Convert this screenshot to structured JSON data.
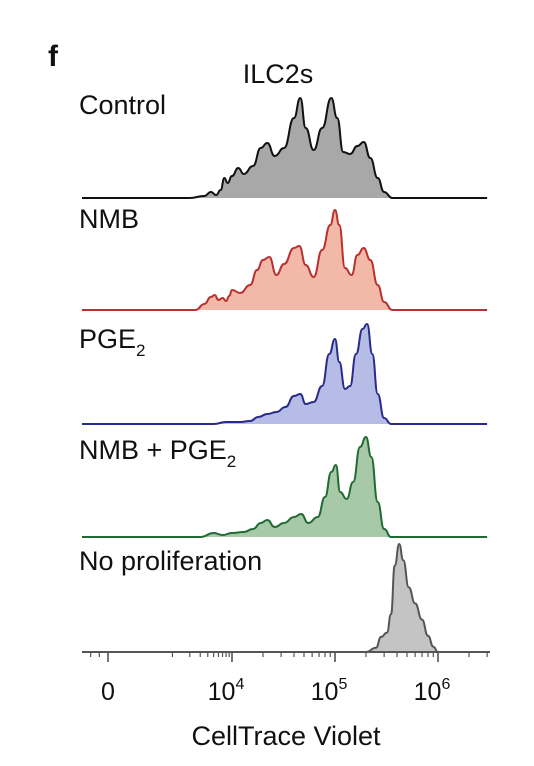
{
  "panel_letter": "f",
  "chart_data": {
    "type": "area",
    "title": "ILC2s",
    "xlabel": "CellTrace Violet",
    "ylabel": "",
    "xscale": "biexponential",
    "xlim": [
      -3000,
      3000000
    ],
    "x_ticks": [
      {
        "value": 0,
        "base": "0",
        "sup": ""
      },
      {
        "value": 10000,
        "base": "10",
        "sup": "4"
      },
      {
        "value": 100000,
        "base": "10",
        "sup": "5"
      },
      {
        "value": 1000000,
        "base": "10",
        "sup": "6"
      }
    ],
    "series": [
      {
        "name": "Control",
        "name_sub": "",
        "stroke": "#111111",
        "fill": "#a8a8a8",
        "points": [
          [
            -3000,
            0
          ],
          [
            2000,
            0.0
          ],
          [
            3500,
            0.02
          ],
          [
            4500,
            0.06
          ],
          [
            5500,
            0.03
          ],
          [
            6500,
            0.08
          ],
          [
            7500,
            0.2
          ],
          [
            8500,
            0.15
          ],
          [
            10000,
            0.22
          ],
          [
            11500,
            0.3
          ],
          [
            13000,
            0.24
          ],
          [
            16000,
            0.32
          ],
          [
            19000,
            0.5
          ],
          [
            22000,
            0.55
          ],
          [
            26000,
            0.42
          ],
          [
            32000,
            0.5
          ],
          [
            40000,
            0.8
          ],
          [
            46000,
            1.0
          ],
          [
            52000,
            0.7
          ],
          [
            62000,
            0.48
          ],
          [
            75000,
            0.7
          ],
          [
            92000,
            1.0
          ],
          [
            105000,
            0.8
          ],
          [
            120000,
            0.46
          ],
          [
            140000,
            0.44
          ],
          [
            165000,
            0.52
          ],
          [
            190000,
            0.56
          ],
          [
            220000,
            0.4
          ],
          [
            260000,
            0.2
          ],
          [
            300000,
            0.06
          ],
          [
            360000,
            0.0
          ],
          [
            3000000,
            0
          ]
        ]
      },
      {
        "name": "NMB",
        "name_sub": "",
        "stroke": "#b83030",
        "fill": "#f2b8a8",
        "points": [
          [
            -3000,
            0
          ],
          [
            2500,
            0.0
          ],
          [
            3500,
            0.06
          ],
          [
            4500,
            0.13
          ],
          [
            5200,
            0.15
          ],
          [
            6000,
            0.1
          ],
          [
            7000,
            0.12
          ],
          [
            8000,
            0.09
          ],
          [
            9000,
            0.14
          ],
          [
            10000,
            0.2
          ],
          [
            12000,
            0.17
          ],
          [
            15000,
            0.25
          ],
          [
            17500,
            0.4
          ],
          [
            20000,
            0.5
          ],
          [
            23000,
            0.53
          ],
          [
            27000,
            0.35
          ],
          [
            32000,
            0.46
          ],
          [
            40000,
            0.62
          ],
          [
            45000,
            0.64
          ],
          [
            52000,
            0.45
          ],
          [
            62000,
            0.33
          ],
          [
            75000,
            0.6
          ],
          [
            90000,
            0.85
          ],
          [
            100000,
            1.0
          ],
          [
            110000,
            0.85
          ],
          [
            125000,
            0.42
          ],
          [
            145000,
            0.35
          ],
          [
            165000,
            0.55
          ],
          [
            190000,
            0.62
          ],
          [
            220000,
            0.5
          ],
          [
            260000,
            0.25
          ],
          [
            300000,
            0.08
          ],
          [
            360000,
            0.0
          ],
          [
            3000000,
            0
          ]
        ]
      },
      {
        "name": "PGE",
        "name_sub": "2",
        "stroke": "#2a2a8c",
        "fill": "#b5bde6",
        "points": [
          [
            -3000,
            0
          ],
          [
            5000,
            0.0
          ],
          [
            8000,
            0.02
          ],
          [
            12000,
            0.02
          ],
          [
            15000,
            0.03
          ],
          [
            18000,
            0.07
          ],
          [
            22000,
            0.1
          ],
          [
            27000,
            0.12
          ],
          [
            33000,
            0.17
          ],
          [
            40000,
            0.28
          ],
          [
            46000,
            0.3
          ],
          [
            52000,
            0.2
          ],
          [
            62000,
            0.22
          ],
          [
            75000,
            0.38
          ],
          [
            88000,
            0.7
          ],
          [
            100000,
            0.85
          ],
          [
            110000,
            0.62
          ],
          [
            125000,
            0.35
          ],
          [
            140000,
            0.38
          ],
          [
            160000,
            0.7
          ],
          [
            185000,
            0.95
          ],
          [
            205000,
            1.0
          ],
          [
            230000,
            0.7
          ],
          [
            260000,
            0.3
          ],
          [
            300000,
            0.06
          ],
          [
            350000,
            0.0
          ],
          [
            3000000,
            0
          ]
        ]
      },
      {
        "name": "NMB + PGE",
        "name_sub": "2",
        "stroke": "#1f6b32",
        "fill": "#a8c9a8",
        "points": [
          [
            -3000,
            0
          ],
          [
            3000,
            0.0
          ],
          [
            5000,
            0.04
          ],
          [
            7000,
            0.02
          ],
          [
            10000,
            0.04
          ],
          [
            13000,
            0.05
          ],
          [
            16000,
            0.08
          ],
          [
            19000,
            0.14
          ],
          [
            22000,
            0.17
          ],
          [
            26000,
            0.1
          ],
          [
            32000,
            0.14
          ],
          [
            40000,
            0.2
          ],
          [
            47000,
            0.23
          ],
          [
            55000,
            0.14
          ],
          [
            68000,
            0.2
          ],
          [
            80000,
            0.4
          ],
          [
            92000,
            0.65
          ],
          [
            102000,
            0.72
          ],
          [
            112000,
            0.45
          ],
          [
            130000,
            0.38
          ],
          [
            150000,
            0.55
          ],
          [
            175000,
            0.9
          ],
          [
            200000,
            1.0
          ],
          [
            225000,
            0.8
          ],
          [
            260000,
            0.35
          ],
          [
            300000,
            0.08
          ],
          [
            350000,
            0.0
          ],
          [
            3000000,
            0
          ]
        ]
      },
      {
        "name": "No proliferation",
        "name_sub": "",
        "stroke": "#555555",
        "fill": "#c4c4c4",
        "points": [
          [
            -3000,
            0
          ],
          [
            200000,
            0.0
          ],
          [
            250000,
            0.04
          ],
          [
            280000,
            0.14
          ],
          [
            320000,
            0.18
          ],
          [
            350000,
            0.35
          ],
          [
            380000,
            0.8
          ],
          [
            420000,
            1.0
          ],
          [
            460000,
            0.85
          ],
          [
            520000,
            0.6
          ],
          [
            600000,
            0.45
          ],
          [
            700000,
            0.3
          ],
          [
            800000,
            0.15
          ],
          [
            900000,
            0.05
          ],
          [
            1000000,
            0.0
          ],
          [
            3000000,
            0
          ]
        ]
      }
    ]
  }
}
